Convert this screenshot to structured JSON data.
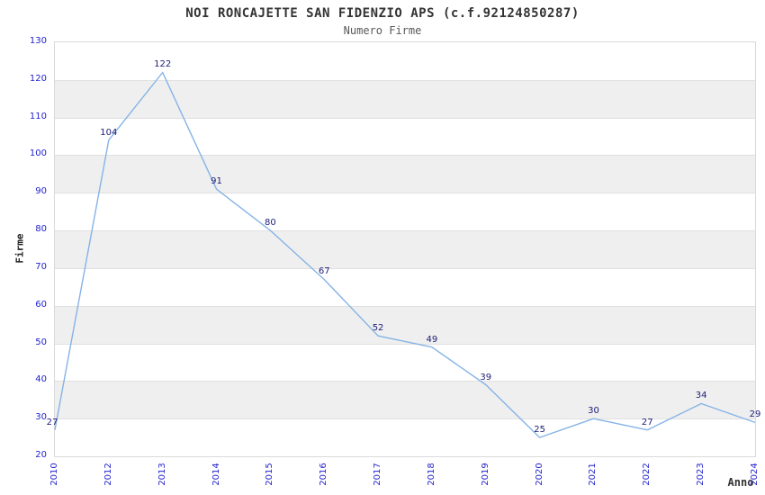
{
  "header": {
    "title": "NOI RONCAJETTE SAN FIDENZIO APS (c.f.92124850287)",
    "subtitle": "Numero Firme"
  },
  "chart_data": {
    "type": "line",
    "title": "NOI RONCAJETTE SAN FIDENZIO APS (c.f.92124850287)",
    "subtitle": "Numero Firme",
    "xlabel": "Anno",
    "ylabel": "Firme",
    "categories": [
      "2010",
      "2012",
      "2013",
      "2014",
      "2015",
      "2016",
      "2017",
      "2018",
      "2019",
      "2020",
      "2021",
      "2022",
      "2023",
      "2024"
    ],
    "values": [
      27,
      104,
      122,
      91,
      80,
      67,
      52,
      49,
      39,
      25,
      30,
      27,
      34,
      29
    ],
    "ylim": [
      20,
      130
    ],
    "ytick_step": 10,
    "legend": "none",
    "grid": "horizontal-alternating-bands",
    "colors": {
      "line": "#85b3e6",
      "tick_label": "#2323cd",
      "data_label": "#1c1c78",
      "band_gray": "#efefef",
      "gridline": "#e0e0e0",
      "plot_border": "#d9d9d9",
      "title_text": "#333333",
      "subtitle_text": "#595959"
    }
  }
}
